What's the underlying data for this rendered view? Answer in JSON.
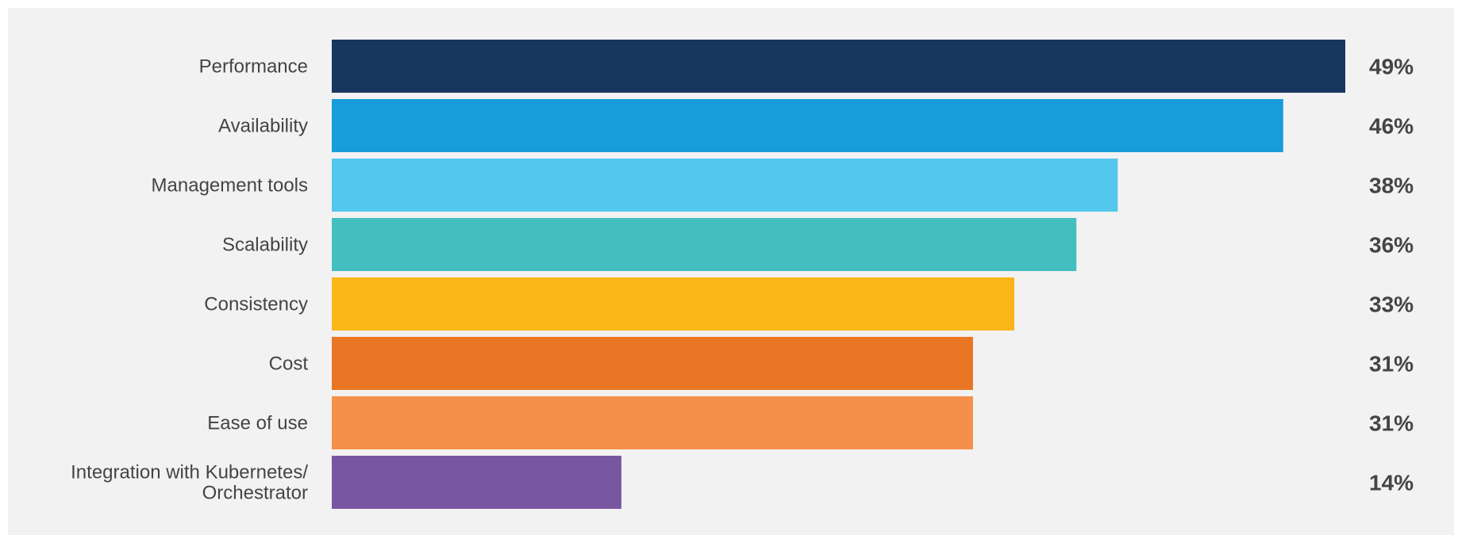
{
  "chart_data": {
    "type": "bar",
    "orientation": "horizontal",
    "categories": [
      "Performance",
      "Availability",
      "Management tools",
      "Scalability",
      "Consistency",
      "Cost",
      "Ease of use",
      "Integration with Kubernetes/ Orchestrator"
    ],
    "category_lines": [
      [
        "Performance"
      ],
      [
        "Availability"
      ],
      [
        "Management tools"
      ],
      [
        "Scalability"
      ],
      [
        "Consistency"
      ],
      [
        "Cost"
      ],
      [
        "Ease of use"
      ],
      [
        "Integration with Kubernetes/",
        "Orchestrator"
      ]
    ],
    "values": [
      49,
      46,
      38,
      36,
      33,
      31,
      31,
      14
    ],
    "value_labels": [
      "49%",
      "46%",
      "38%",
      "36%",
      "33%",
      "31%",
      "31%",
      "14%"
    ],
    "colors": [
      "#17375f",
      "#179dd9",
      "#53c7ec",
      "#43bfc0",
      "#fbb61a",
      "#e97624",
      "#f4904a",
      "#7857a0"
    ],
    "background": "#f2f2f2",
    "grid": false,
    "xlim": [
      0,
      49
    ]
  }
}
